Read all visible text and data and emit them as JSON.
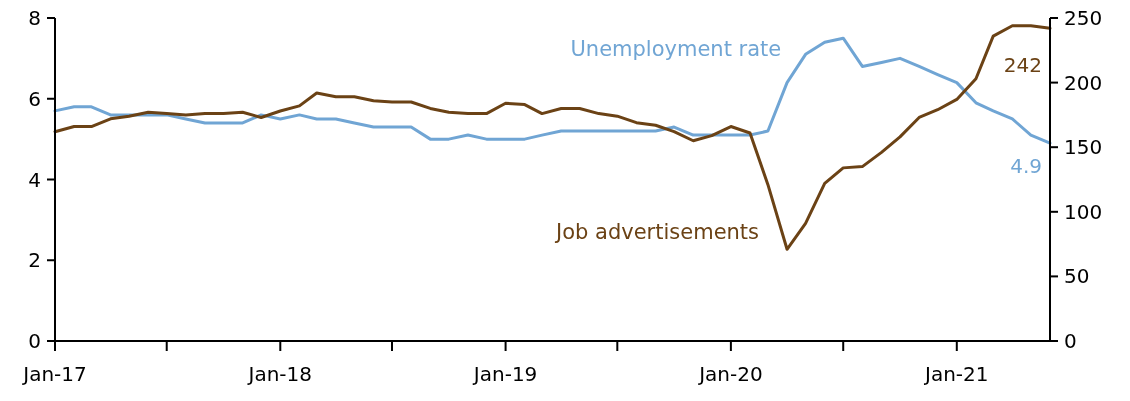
{
  "chart_data": {
    "type": "line",
    "x": [
      "2017-01",
      "2017-02",
      "2017-03",
      "2017-04",
      "2017-05",
      "2017-06",
      "2017-07",
      "2017-08",
      "2017-09",
      "2017-10",
      "2017-11",
      "2017-12",
      "2018-01",
      "2018-02",
      "2018-03",
      "2018-04",
      "2018-05",
      "2018-06",
      "2018-07",
      "2018-08",
      "2018-09",
      "2018-10",
      "2018-11",
      "2018-12",
      "2019-01",
      "2019-02",
      "2019-03",
      "2019-04",
      "2019-05",
      "2019-06",
      "2019-07",
      "2019-08",
      "2019-09",
      "2019-10",
      "2019-11",
      "2019-12",
      "2020-01",
      "2020-02",
      "2020-03",
      "2020-04",
      "2020-05",
      "2020-06",
      "2020-07",
      "2020-08",
      "2020-09",
      "2020-10",
      "2020-11",
      "2020-12",
      "2021-01",
      "2021-02",
      "2021-03",
      "2021-04",
      "2021-05",
      "2021-06"
    ],
    "series": [
      {
        "name": "Unemployment rate",
        "color": "#70a5d4",
        "values": [
          5.7,
          5.8,
          5.8,
          5.6,
          5.6,
          5.6,
          5.6,
          5.5,
          5.4,
          5.4,
          5.4,
          5.6,
          5.5,
          5.6,
          5.5,
          5.5,
          5.4,
          5.3,
          5.3,
          5.3,
          5.0,
          5.0,
          5.1,
          5.0,
          5.0,
          5.0,
          5.1,
          5.2,
          5.2,
          5.2,
          5.2,
          5.2,
          5.2,
          5.3,
          5.1,
          5.1,
          5.1,
          5.1,
          5.2,
          6.4,
          7.1,
          7.4,
          7.5,
          6.8,
          6.9,
          7.0,
          6.8,
          6.6,
          6.4,
          5.9,
          5.7,
          5.5,
          5.1,
          4.9
        ],
        "value_labels": [
          null,
          null,
          null,
          null,
          null,
          null,
          null,
          null,
          null,
          null,
          null,
          null,
          null,
          null,
          null,
          null,
          null,
          null,
          null,
          null,
          null,
          null,
          null,
          null,
          null,
          null,
          null,
          null,
          null,
          null,
          null,
          null,
          null,
          null,
          null,
          null,
          null,
          null,
          null,
          null,
          null,
          null,
          null,
          null,
          null,
          null,
          null,
          null,
          null,
          null,
          null,
          null,
          null,
          "4.9"
        ]
      },
      {
        "name": "Job advertisements",
        "color": "#6b4215",
        "axis": "y2",
        "values": [
          162,
          166,
          166,
          172,
          174,
          177,
          176,
          175,
          176,
          176,
          177,
          173,
          178,
          182,
          192,
          189,
          189,
          186,
          185,
          185,
          180,
          177,
          176,
          176,
          184,
          183,
          176,
          180,
          180,
          176,
          174,
          169,
          167,
          162,
          155,
          159,
          166,
          161,
          121,
          71,
          91,
          122,
          134,
          135,
          146,
          158,
          173,
          179,
          187,
          203,
          236,
          244,
          244,
          242
        ],
        "value_labels": [
          null,
          null,
          null,
          null,
          null,
          null,
          null,
          null,
          null,
          null,
          null,
          null,
          null,
          null,
          null,
          null,
          null,
          null,
          null,
          null,
          null,
          null,
          null,
          null,
          null,
          null,
          null,
          null,
          null,
          null,
          null,
          null,
          null,
          null,
          null,
          null,
          null,
          null,
          null,
          null,
          null,
          null,
          null,
          null,
          null,
          null,
          null,
          null,
          null,
          null,
          null,
          null,
          null,
          "242"
        ]
      }
    ],
    "xlim": [
      "2017-01",
      "2021-06"
    ],
    "xticks": [
      {
        "value": "2017-01",
        "label": "Jan-17"
      },
      {
        "value": "2017-07",
        "label": null
      },
      {
        "value": "2018-01",
        "label": "Jan-18"
      },
      {
        "value": "2018-07",
        "label": null
      },
      {
        "value": "2019-01",
        "label": "Jan-19"
      },
      {
        "value": "2019-07",
        "label": null
      },
      {
        "value": "2020-01",
        "label": "Jan-20"
      },
      {
        "value": "2020-07",
        "label": null
      },
      {
        "value": "2021-01",
        "label": "Jan-21"
      }
    ],
    "ylim": [
      0,
      8
    ],
    "yticks": [
      0,
      2,
      4,
      6,
      8
    ],
    "y2lim": [
      0,
      250
    ],
    "y2ticks": [
      0,
      50,
      100,
      150,
      200,
      250
    ],
    "grid": false,
    "legend": false,
    "marker": "none",
    "line_style": "solid"
  }
}
